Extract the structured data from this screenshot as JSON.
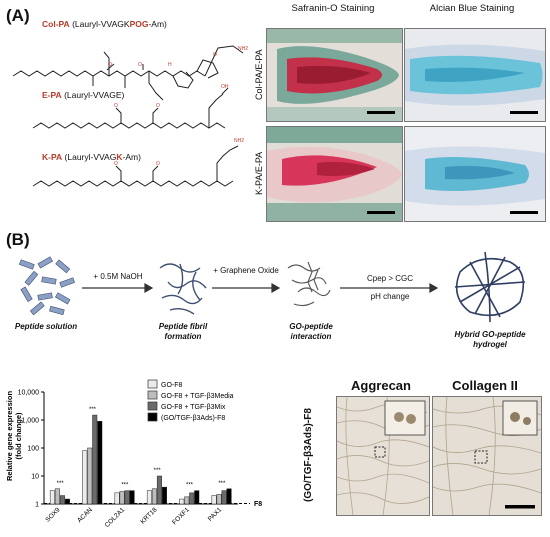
{
  "panel_a": {
    "letter": "(A)",
    "peptides": [
      {
        "name": "Col-PA",
        "formula_prefix": "(Lauryl-VVAGK",
        "formula_red": "POG",
        "formula_suffix": "-Am)"
      },
      {
        "name": "E-PA",
        "formula": "(Lauryl-VVAGE)"
      },
      {
        "name": "K-PA",
        "formula_prefix": "(Lauryl-VVAG",
        "formula_red": "K",
        "formula_suffix": "-Am)"
      }
    ],
    "stain_titles": [
      "Safranin-O Staining",
      "Alcian Blue Staining"
    ],
    "row_labels": [
      "Col-PA/E-PA",
      "K-PA/E-PA"
    ]
  },
  "panel_b": {
    "letter": "(B)",
    "steps": [
      {
        "label": "Peptide solution"
      },
      {
        "label": "Peptide fibril formation"
      },
      {
        "label": "GO-peptide interaction"
      },
      {
        "label": "Hybrid GO-peptide hydrogel"
      }
    ],
    "arrows": [
      {
        "label": "+ 0.5M NaOH"
      },
      {
        "label": "+ Graphene Oxide"
      },
      {
        "label_top": "Cpep > CGC",
        "label_bottom": "pH change"
      }
    ],
    "micro_titles": [
      "Aggrecan",
      "Collagen II"
    ],
    "micro_side_label": "(GO/TGF-β3Ads)-F8"
  },
  "chart_data": {
    "type": "bar",
    "ylabel": "Relative gene expression (fold change)",
    "yscale": "log",
    "ylim": [
      1,
      10000
    ],
    "yticks": [
      "1",
      "10",
      "100",
      "1,000",
      "10,000"
    ],
    "baseline_label": "F8",
    "categories": [
      "SOX9",
      "ACAN",
      "COL2A1",
      "KRT18",
      "FOXF1",
      "PAX1"
    ],
    "series": [
      {
        "name": "GO-F8",
        "color": "#ececec",
        "values": [
          3,
          80,
          2.5,
          3,
          1.5,
          2
        ]
      },
      {
        "name": "GO-F8 + TGF-β3Media",
        "color": "#bdbdbd",
        "values": [
          3.5,
          100,
          2.8,
          3.5,
          1.8,
          2.2
        ]
      },
      {
        "name": "GO-F8 + TGF-β3Mix",
        "color": "#6b6b6b",
        "values": [
          2,
          1500,
          3,
          10,
          2.5,
          3
        ]
      },
      {
        "name": "(GO/TGF-β3Ads)-F8",
        "color": "#000000",
        "values": [
          1.5,
          900,
          3,
          4,
          3,
          3.5
        ]
      }
    ],
    "significance": "***"
  }
}
